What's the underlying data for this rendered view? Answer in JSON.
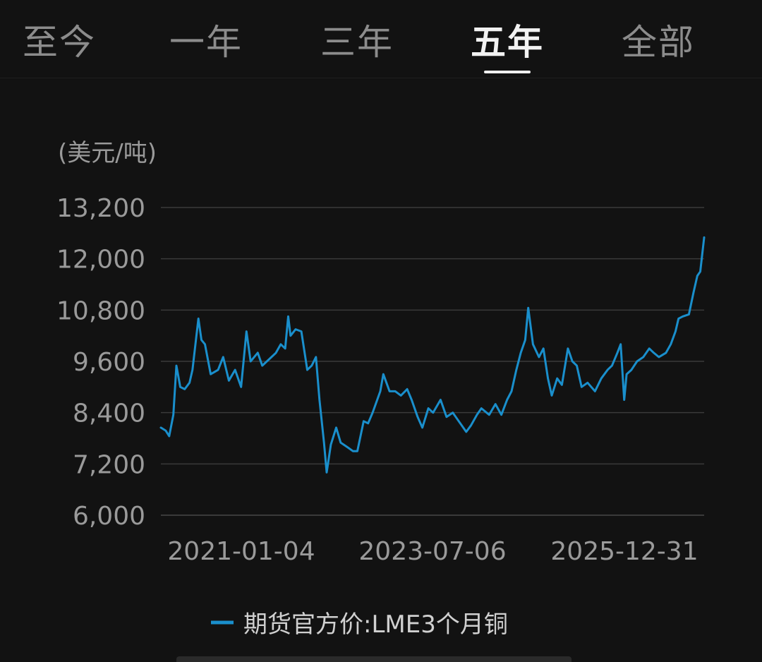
{
  "tabs": [
    {
      "label": "至今",
      "active": false
    },
    {
      "label": "一年",
      "active": false
    },
    {
      "label": "三年",
      "active": false
    },
    {
      "label": "五年",
      "active": true
    },
    {
      "label": "全部",
      "active": false
    }
  ],
  "colors": {
    "background": "#121212",
    "series": "#1a8fcc",
    "grid": "#3a3a3a",
    "text": "#9a9a9a",
    "tab_active": "#f2f2f2"
  },
  "chart_data": {
    "type": "line",
    "unit_label": "(美元/吨)",
    "ylim": [
      6000,
      13200
    ],
    "yticks": [
      6000,
      7200,
      8400,
      9600,
      10800,
      12000,
      13200
    ],
    "ytick_labels": [
      "6,000",
      "7,200",
      "8,400",
      "9,600",
      "10,800",
      "12,000",
      "13,200"
    ],
    "xtick_labels": [
      "2021-01-04",
      "2023-07-06",
      "2025-12-31"
    ],
    "xlim": [
      "2021-01-04",
      "2025-12-31"
    ],
    "grid": true,
    "legend_position": "bottom",
    "series": [
      {
        "name": "期货官方价:LME3个月铜",
        "points": [
          [
            "2021-01-04",
            8050
          ],
          [
            "2021-01-20",
            7980
          ],
          [
            "2021-02-01",
            7850
          ],
          [
            "2021-02-15",
            8350
          ],
          [
            "2021-02-25",
            9500
          ],
          [
            "2021-03-10",
            9000
          ],
          [
            "2021-03-25",
            8950
          ],
          [
            "2021-04-10",
            9100
          ],
          [
            "2021-04-20",
            9400
          ],
          [
            "2021-05-10",
            10600
          ],
          [
            "2021-05-20",
            10100
          ],
          [
            "2021-06-01",
            10000
          ],
          [
            "2021-06-20",
            9300
          ],
          [
            "2021-07-15",
            9400
          ],
          [
            "2021-08-01",
            9700
          ],
          [
            "2021-08-20",
            9150
          ],
          [
            "2021-09-10",
            9400
          ],
          [
            "2021-09-30",
            9000
          ],
          [
            "2021-10-18",
            10300
          ],
          [
            "2021-11-01",
            9600
          ],
          [
            "2021-11-25",
            9800
          ],
          [
            "2021-12-10",
            9500
          ],
          [
            "2022-01-10",
            9700
          ],
          [
            "2022-01-25",
            9800
          ],
          [
            "2022-02-10",
            10000
          ],
          [
            "2022-02-25",
            9900
          ],
          [
            "2022-03-07",
            10650
          ],
          [
            "2022-03-15",
            10200
          ],
          [
            "2022-04-01",
            10350
          ],
          [
            "2022-04-20",
            10300
          ],
          [
            "2022-05-10",
            9400
          ],
          [
            "2022-05-25",
            9500
          ],
          [
            "2022-06-08",
            9700
          ],
          [
            "2022-06-20",
            8700
          ],
          [
            "2022-07-05",
            7700
          ],
          [
            "2022-07-14",
            7000
          ],
          [
            "2022-07-28",
            7650
          ],
          [
            "2022-08-15",
            8050
          ],
          [
            "2022-08-30",
            7700
          ],
          [
            "2022-09-20",
            7600
          ],
          [
            "2022-10-10",
            7500
          ],
          [
            "2022-10-25",
            7500
          ],
          [
            "2022-11-15",
            8200
          ],
          [
            "2022-11-30",
            8150
          ],
          [
            "2022-12-15",
            8400
          ],
          [
            "2023-01-10",
            8900
          ],
          [
            "2023-01-20",
            9300
          ],
          [
            "2023-02-10",
            8900
          ],
          [
            "2023-03-01",
            8900
          ],
          [
            "2023-03-20",
            8800
          ],
          [
            "2023-04-10",
            8950
          ],
          [
            "2023-04-25",
            8700
          ],
          [
            "2023-05-15",
            8300
          ],
          [
            "2023-05-31",
            8050
          ],
          [
            "2023-06-20",
            8500
          ],
          [
            "2023-07-06",
            8400
          ],
          [
            "2023-07-31",
            8700
          ],
          [
            "2023-08-20",
            8300
          ],
          [
            "2023-09-10",
            8400
          ],
          [
            "2023-09-30",
            8200
          ],
          [
            "2023-10-25",
            7950
          ],
          [
            "2023-11-10",
            8100
          ],
          [
            "2023-11-30",
            8350
          ],
          [
            "2023-12-15",
            8500
          ],
          [
            "2024-01-10",
            8350
          ],
          [
            "2024-01-31",
            8600
          ],
          [
            "2024-02-20",
            8350
          ],
          [
            "2024-03-10",
            8700
          ],
          [
            "2024-03-25",
            8900
          ],
          [
            "2024-04-10",
            9400
          ],
          [
            "2024-04-25",
            9800
          ],
          [
            "2024-05-10",
            10100
          ],
          [
            "2024-05-20",
            10850
          ],
          [
            "2024-06-05",
            10000
          ],
          [
            "2024-06-25",
            9700
          ],
          [
            "2024-07-10",
            9900
          ],
          [
            "2024-07-25",
            9200
          ],
          [
            "2024-08-07",
            8800
          ],
          [
            "2024-08-25",
            9200
          ],
          [
            "2024-09-10",
            9050
          ],
          [
            "2024-09-30",
            9900
          ],
          [
            "2024-10-15",
            9600
          ],
          [
            "2024-10-30",
            9500
          ],
          [
            "2024-11-15",
            9000
          ],
          [
            "2024-12-05",
            9100
          ],
          [
            "2024-12-30",
            8900
          ],
          [
            "2025-01-20",
            9200
          ],
          [
            "2025-02-10",
            9400
          ],
          [
            "2025-02-25",
            9500
          ],
          [
            "2025-03-15",
            9800
          ],
          [
            "2025-03-26",
            10000
          ],
          [
            "2025-04-07",
            8700
          ],
          [
            "2025-04-15",
            9300
          ],
          [
            "2025-05-01",
            9400
          ],
          [
            "2025-05-20",
            9600
          ],
          [
            "2025-06-10",
            9700
          ],
          [
            "2025-06-30",
            9900
          ],
          [
            "2025-07-15",
            9800
          ],
          [
            "2025-08-01",
            9700
          ],
          [
            "2025-08-25",
            9800
          ],
          [
            "2025-09-10",
            10000
          ],
          [
            "2025-09-26",
            10300
          ],
          [
            "2025-10-06",
            10600
          ],
          [
            "2025-10-20",
            10650
          ],
          [
            "2025-11-10",
            10700
          ],
          [
            "2025-11-25",
            11200
          ],
          [
            "2025-12-08",
            11600
          ],
          [
            "2025-12-18",
            11700
          ],
          [
            "2025-12-31",
            12500
          ]
        ]
      }
    ]
  }
}
